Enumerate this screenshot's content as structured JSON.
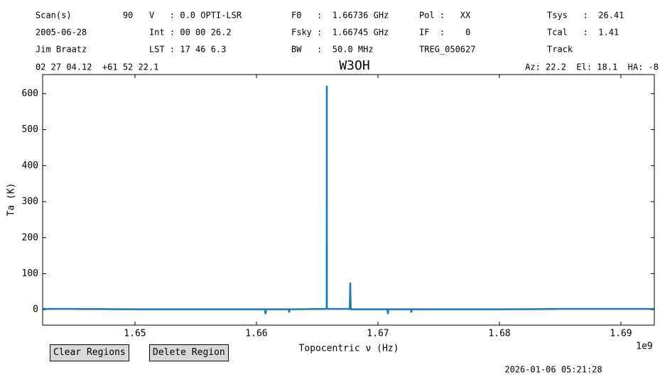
{
  "header": {
    "rows": [
      [
        "Scan(s)          90",
        "V   : 0.0 OPTI-LSR",
        "F0   :  1.66736 GHz",
        "Pol :   XX",
        "Tsys   :  26.41"
      ],
      [
        "2005-06-28",
        "Int : 00 00 26.2",
        "Fsky :  1.66745 GHz",
        "IF  :    0",
        "Tcal   :  1.41"
      ],
      [
        "Jim Braatz",
        "LST : 17 46 6.3",
        "BW   :  50.0 MHz",
        "TREG_050627",
        "Track"
      ]
    ],
    "position": "02 27 04.12  +61 52 22.1",
    "pointing": "Az: 22.2  El: 18.1  HA: -8"
  },
  "chart_data": {
    "type": "line",
    "title": "W3OH",
    "x_label": "Topocentric ν (Hz)",
    "y_label": "Ta (K)",
    "x_offset_label": "1e9",
    "x": [
      1642400000,
      1645000000,
      1650000000,
      1655000000,
      1660700000,
      1660750000,
      1660800000,
      1662650000,
      1662690000,
      1662730000,
      1665700000,
      1665780000,
      1665785000,
      1665790000,
      1665800000,
      1667680000,
      1667720000,
      1667760000,
      1670780000,
      1670820000,
      1670860000,
      1672720000,
      1672750000,
      1672780000,
      1680000000,
      1685000000,
      1692750000
    ],
    "series": [
      {
        "name": "W3OH",
        "color": "#1f77b4",
        "values": [
          2,
          2,
          1,
          1,
          1,
          -12,
          1,
          1,
          -8,
          1,
          2,
          2,
          90,
          622,
          2,
          2,
          75,
          1,
          1,
          -12,
          1,
          1,
          -8,
          1,
          1,
          2,
          2
        ]
      }
    ],
    "xlim": [
      1642400000,
      1692750000
    ],
    "ylim": [
      -43,
      653
    ],
    "xticks": [
      {
        "value": 1650000000,
        "label": "1.65"
      },
      {
        "value": 1660000000,
        "label": "1.66"
      },
      {
        "value": 1670000000,
        "label": "1.67"
      },
      {
        "value": 1680000000,
        "label": "1.68"
      },
      {
        "value": 1690000000,
        "label": "1.69"
      }
    ],
    "yticks": [
      0,
      100,
      200,
      300,
      400,
      500,
      600
    ]
  },
  "buttons": [
    "Clear Regions",
    "Delete Region"
  ],
  "timestamp": "2026-01-06 05:21:28"
}
